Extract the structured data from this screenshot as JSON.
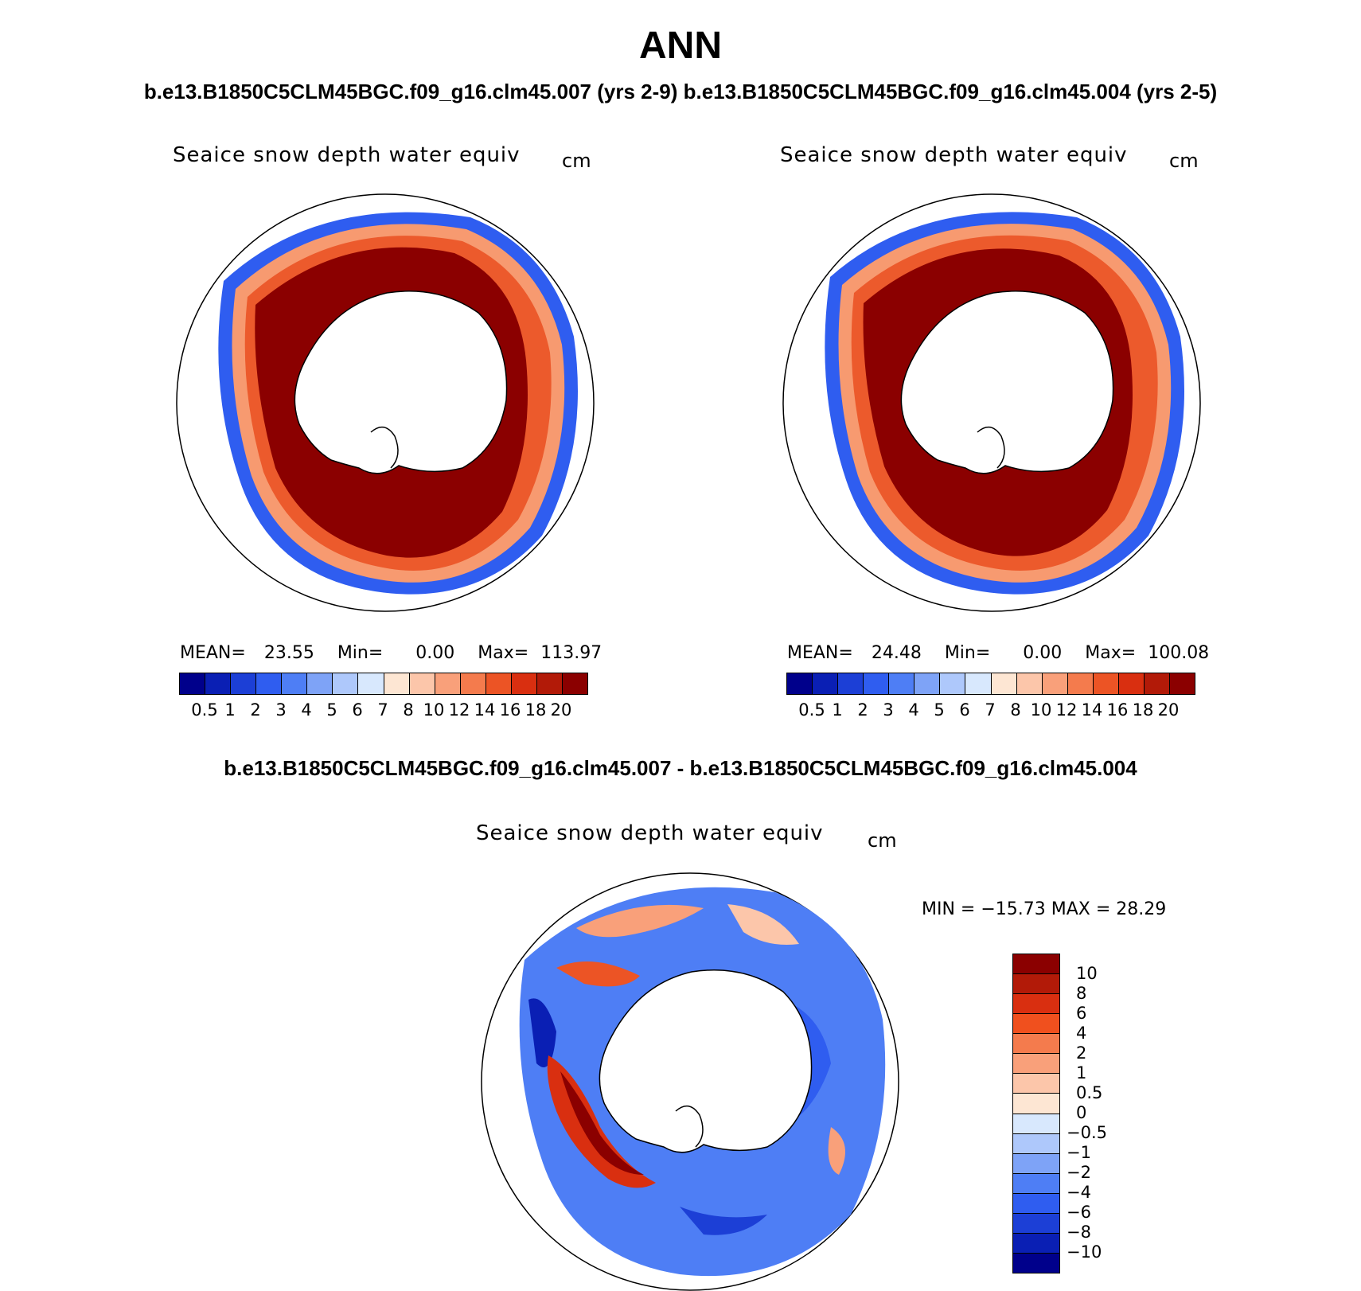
{
  "title": "ANN",
  "runs_title": "b.e13.B1850C5CLM45BGC.f09_g16.clm45.007 (yrs 2-9)  b.e13.B1850C5CLM45BGC.f09_g16.clm45.004 (yrs 2-5)",
  "diff_title": "b.e13.B1850C5CLM45BGC.f09_g16.clm45.007 - b.e13.B1850C5CLM45BGC.f09_g16.clm45.004",
  "panels": [
    {
      "variable": "Seaice snow depth water equiv",
      "units": "cm",
      "stats": {
        "mean_label": "MEAN=",
        "mean": "23.55",
        "min_label": "Min=",
        "min": "0.00",
        "max_label": "Max=",
        "max": "113.97"
      }
    },
    {
      "variable": "Seaice snow depth water equiv",
      "units": "cm",
      "stats": {
        "mean_label": "MEAN=",
        "mean": "24.48",
        "min_label": "Min=",
        "min": "0.00",
        "max_label": "Max=",
        "max": "100.08"
      }
    }
  ],
  "difference_panel": {
    "variable": "Seaice snow depth water equiv",
    "units": "cm",
    "minmax": "MIN = −15.73 MAX =   28.29"
  },
  "colorbar": {
    "colors": [
      "#00008b",
      "#0a1fb4",
      "#1c3fd6",
      "#2f5df0",
      "#4e7ef5",
      "#7ea3f7",
      "#aec8fb",
      "#d8e8fd",
      "#fde6d3",
      "#fcc6aa",
      "#f9a07a",
      "#f47b4d",
      "#ec5425",
      "#d92f10",
      "#b21a08",
      "#8b0000"
    ],
    "ticks": [
      "0.5",
      "1",
      "2",
      "3",
      "4",
      "5",
      "6",
      "7",
      "8",
      "10",
      "12",
      "14",
      "16",
      "18",
      "20"
    ]
  },
  "diff_colorbar": {
    "colors": [
      "#8b0000",
      "#b21a08",
      "#d92f10",
      "#f0501e",
      "#f47b4d",
      "#f9a07a",
      "#fcc6aa",
      "#fde6d3",
      "#d8e8fd",
      "#aec8fb",
      "#7ea3f7",
      "#4e7ef5",
      "#2f5df0",
      "#1c3fd6",
      "#0a1fb4",
      "#00008b"
    ],
    "ticks": [
      "10",
      "8",
      "6",
      "4",
      "2",
      "1",
      "0.5",
      "0",
      "−0.5",
      "−1",
      "−2",
      "−4",
      "−6",
      "−8",
      "−10"
    ]
  },
  "map_colors": {
    "dark_red": "#8b0000",
    "orange": "#ec5a2c",
    "light_orange": "#f79a70",
    "blue": "#2f5df0",
    "dark_blue": "#0a1fb4",
    "light_blue": "#aec8fb"
  }
}
